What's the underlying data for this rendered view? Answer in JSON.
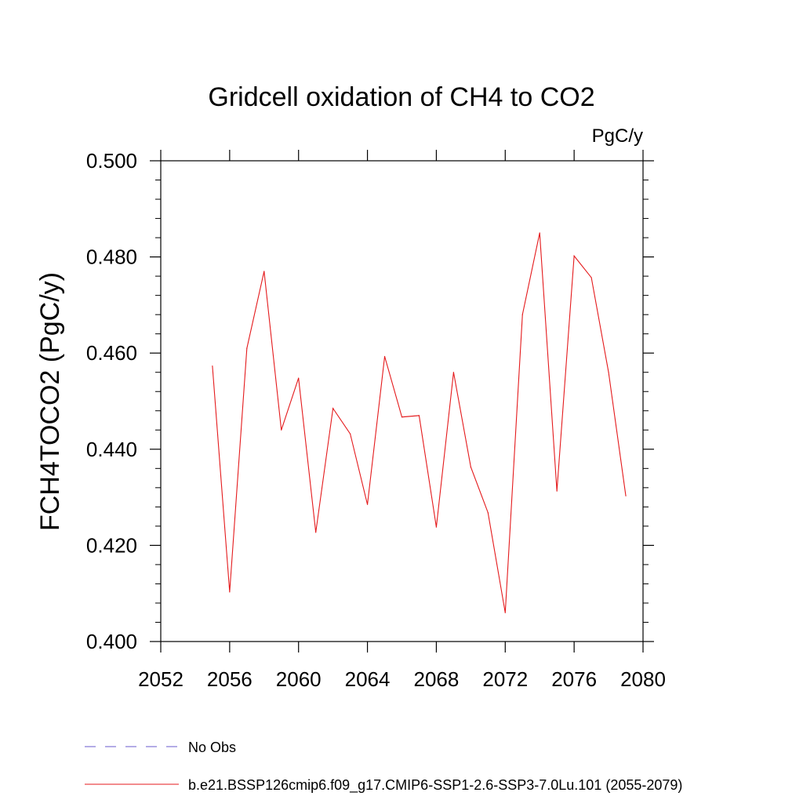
{
  "chart_data": {
    "type": "line",
    "title": "Gridcell oxidation of CH4 to CO2",
    "units": "PgC/y",
    "xlabel": "",
    "ylabel": "FCH4TOCO2  (PgC/y)",
    "xlim": [
      2052,
      2080
    ],
    "ylim": [
      0.4,
      0.5
    ],
    "x_ticks": [
      2052,
      2056,
      2060,
      2064,
      2068,
      2072,
      2076,
      2080
    ],
    "x_tick_labels": [
      "2052",
      "2056",
      "2060",
      "2064",
      "2068",
      "2072",
      "2076",
      "2080"
    ],
    "y_ticks": [
      0.4,
      0.42,
      0.44,
      0.46,
      0.48,
      0.5
    ],
    "y_tick_labels": [
      "0.400",
      "0.420",
      "0.440",
      "0.460",
      "0.480",
      "0.500"
    ],
    "grid": false,
    "legend_position": "bottom-left",
    "series": [
      {
        "name": "b.e21.BSSP126cmip6.f09_g17.CMIP6-SSP1-2.6-SSP3-7.0Lu.101 (2055-2079)",
        "color": "#e41a1c",
        "style": "solid",
        "x": [
          2055,
          2056,
          2057,
          2058,
          2059,
          2060,
          2061,
          2062,
          2063,
          2064,
          2065,
          2066,
          2067,
          2068,
          2069,
          2070,
          2071,
          2072,
          2073,
          2074,
          2075,
          2076,
          2077,
          2078,
          2079
        ],
        "values": [
          0.4573,
          0.4103,
          0.461,
          0.477,
          0.444,
          0.4548,
          0.4227,
          0.4485,
          0.4432,
          0.4285,
          0.4593,
          0.4467,
          0.447,
          0.4238,
          0.456,
          0.4363,
          0.4268,
          0.406,
          0.468,
          0.485,
          0.4313,
          0.4802,
          0.4757,
          0.456,
          0.4303
        ]
      }
    ],
    "legend": [
      {
        "label": "No Obs",
        "color": "#6a5acd",
        "style": "dashed"
      },
      {
        "label": "b.e21.BSSP126cmip6.f09_g17.CMIP6-SSP1-2.6-SSP3-7.0Lu.101 (2055-2079)",
        "color": "#e41a1c",
        "style": "solid"
      }
    ]
  }
}
